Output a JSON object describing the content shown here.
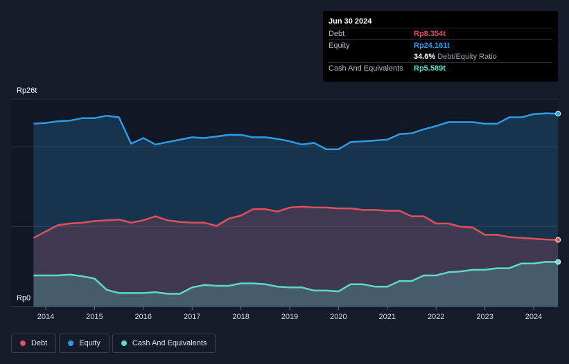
{
  "tooltip": {
    "date": "Jun 30 2024",
    "debt_label": "Debt",
    "debt_value": "Rp8.354t",
    "equity_label": "Equity",
    "equity_value": "Rp24.161t",
    "ratio_value": "34.6%",
    "ratio_label": "Debt/Equity Ratio",
    "cash_label": "Cash And Equivalents",
    "cash_value": "Rp5.589t"
  },
  "legend": [
    {
      "label": "Debt",
      "color": "#e0505b"
    },
    {
      "label": "Equity",
      "color": "#2d9be8"
    },
    {
      "label": "Cash And Equivalents",
      "color": "#5fd9cc"
    }
  ],
  "chart_data": {
    "type": "area",
    "y_unit": "Rp trillion",
    "ylim": [
      0,
      26
    ],
    "y_tick_labels": [
      "Rp0",
      "Rp26t"
    ],
    "x_tick_labels": [
      "2014",
      "2015",
      "2016",
      "2017",
      "2018",
      "2019",
      "2020",
      "2021",
      "2022",
      "2023",
      "2024"
    ],
    "xlim": [
      2013.75,
      2024.5
    ],
    "grid": true,
    "colors": {
      "debt": "#e0505b",
      "equity": "#2d9be8",
      "cash": "#5fd9cc"
    },
    "x": [
      2013.75,
      2014.0,
      2014.25,
      2014.5,
      2014.75,
      2015.0,
      2015.25,
      2015.5,
      2015.75,
      2016.0,
      2016.25,
      2016.5,
      2016.75,
      2017.0,
      2017.25,
      2017.5,
      2017.75,
      2018.0,
      2018.25,
      2018.5,
      2018.75,
      2019.0,
      2019.25,
      2019.5,
      2019.75,
      2020.0,
      2020.25,
      2020.5,
      2020.75,
      2021.0,
      2021.25,
      2021.5,
      2021.75,
      2022.0,
      2022.25,
      2022.5,
      2022.75,
      2023.0,
      2023.25,
      2023.5,
      2023.75,
      2024.0,
      2024.25,
      2024.5
    ],
    "series": [
      {
        "name": "Equity",
        "values": [
          22.9,
          23.0,
          23.2,
          23.3,
          23.6,
          23.6,
          23.9,
          23.7,
          20.4,
          21.1,
          20.3,
          20.6,
          20.9,
          21.2,
          21.1,
          21.3,
          21.5,
          21.5,
          21.2,
          21.2,
          21.0,
          20.7,
          20.3,
          20.5,
          19.7,
          19.7,
          20.6,
          20.7,
          20.8,
          20.9,
          21.6,
          21.7,
          22.2,
          22.6,
          23.1,
          23.1,
          23.1,
          22.9,
          22.9,
          23.7,
          23.7,
          24.1,
          24.2,
          24.161
        ]
      },
      {
        "name": "Debt",
        "values": [
          8.6,
          9.4,
          10.2,
          10.4,
          10.5,
          10.7,
          10.8,
          10.9,
          10.5,
          10.8,
          11.3,
          10.8,
          10.6,
          10.5,
          10.5,
          10.1,
          11.0,
          11.4,
          12.2,
          12.2,
          11.9,
          12.4,
          12.5,
          12.4,
          12.4,
          12.3,
          12.3,
          12.1,
          12.1,
          12.0,
          12.0,
          11.3,
          11.3,
          10.4,
          10.4,
          10.0,
          9.9,
          9.0,
          9.0,
          8.7,
          8.6,
          8.5,
          8.4,
          8.354
        ]
      },
      {
        "name": "Cash And Equivalents",
        "values": [
          3.9,
          3.9,
          3.9,
          4.0,
          3.8,
          3.5,
          2.1,
          1.7,
          1.7,
          1.7,
          1.8,
          1.6,
          1.6,
          2.4,
          2.7,
          2.6,
          2.6,
          2.9,
          2.9,
          2.8,
          2.5,
          2.4,
          2.4,
          2.0,
          2.0,
          1.9,
          2.8,
          2.8,
          2.5,
          2.5,
          3.2,
          3.2,
          3.9,
          3.9,
          4.3,
          4.4,
          4.6,
          4.6,
          4.8,
          4.8,
          5.4,
          5.4,
          5.6,
          5.589
        ]
      }
    ]
  }
}
